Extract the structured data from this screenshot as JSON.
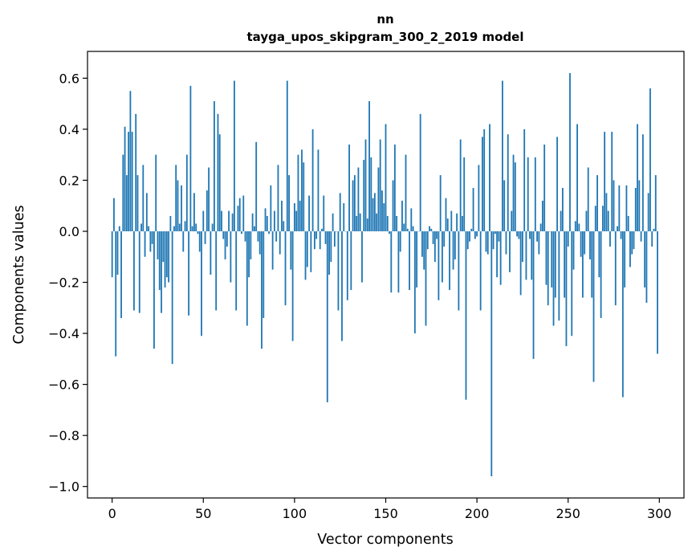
{
  "chart_data": {
    "type": "bar",
    "title_line1": "nn",
    "title_line2": "tayga_upos_skipgram_300_2_2019 model",
    "xlabel": "Vector components",
    "ylabel": "Components values",
    "xlim": [
      -13.5,
      313.5
    ],
    "ylim": [
      -1.045,
      0.705
    ],
    "xticks": [
      0,
      50,
      100,
      150,
      200,
      250,
      300
    ],
    "xtick_labels": [
      "0",
      "50",
      "100",
      "150",
      "200",
      "250",
      "300"
    ],
    "yticks": [
      -1.0,
      -0.8,
      -0.6,
      -0.4,
      -0.2,
      0.0,
      0.2,
      0.4,
      0.6
    ],
    "ytick_labels": [
      "−1.0",
      "−0.8",
      "−0.6",
      "−0.4",
      "−0.2",
      "0.0",
      "0.2",
      "0.4",
      "0.6"
    ],
    "bar_color": "#1f77b4",
    "grid": false,
    "values": [
      -0.18,
      0.13,
      -0.49,
      -0.17,
      0.02,
      -0.34,
      0.3,
      0.41,
      0.22,
      0.39,
      0.55,
      0.39,
      -0.31,
      0.46,
      0.22,
      -0.32,
      0.03,
      0.26,
      -0.1,
      0.15,
      0.02,
      -0.08,
      -0.05,
      -0.46,
      0.3,
      -0.11,
      -0.23,
      -0.32,
      -0.12,
      -0.22,
      -0.18,
      -0.2,
      0.06,
      -0.52,
      0.02,
      0.26,
      0.2,
      0.03,
      0.18,
      -0.08,
      0.04,
      0.3,
      -0.33,
      0.57,
      0.02,
      0.15,
      0.03,
      -0.01,
      -0.08,
      -0.41,
      0.08,
      -0.05,
      0.16,
      0.25,
      -0.17,
      0.03,
      0.51,
      -0.31,
      0.46,
      0.38,
      0.08,
      -0.03,
      -0.11,
      -0.06,
      0.08,
      -0.2,
      0.07,
      0.59,
      -0.31,
      0.1,
      0.13,
      -0.01,
      0.14,
      -0.04,
      -0.37,
      -0.18,
      -0.11,
      0.07,
      0.02,
      0.35,
      -0.04,
      -0.09,
      -0.46,
      -0.34,
      0.09,
      0.06,
      -0.01,
      0.18,
      -0.15,
      0.08,
      -0.04,
      0.26,
      -0.09,
      0.12,
      0.04,
      -0.29,
      0.59,
      0.22,
      -0.15,
      -0.43,
      0.11,
      0.08,
      0.3,
      0.12,
      0.32,
      0.27,
      -0.19,
      -0.14,
      0.14,
      -0.16,
      0.4,
      -0.07,
      -0.03,
      0.32,
      -0.07,
      0.01,
      0.14,
      -0.05,
      -0.67,
      -0.17,
      -0.12,
      0.07,
      -0.06,
      0.0,
      -0.31,
      0.15,
      -0.43,
      0.11,
      0.0,
      -0.27,
      0.34,
      -0.23,
      0.2,
      0.22,
      0.06,
      0.25,
      0.07,
      -0.2,
      0.28,
      0.36,
      0.05,
      0.51,
      0.29,
      0.13,
      0.15,
      0.07,
      0.25,
      0.36,
      0.16,
      0.11,
      0.42,
      0.06,
      -0.01,
      -0.24,
      0.2,
      0.34,
      0.06,
      -0.24,
      -0.08,
      0.12,
      0.03,
      0.3,
      0.01,
      -0.23,
      0.09,
      0.02,
      -0.4,
      -0.22,
      0.0,
      0.46,
      -0.1,
      -0.15,
      -0.37,
      -0.07,
      0.02,
      0.01,
      -0.05,
      -0.12,
      -0.03,
      -0.27,
      0.22,
      -0.2,
      -0.06,
      0.13,
      0.05,
      -0.23,
      0.08,
      -0.15,
      -0.11,
      0.07,
      -0.31,
      0.36,
      0.06,
      0.29,
      -0.66,
      -0.07,
      -0.04,
      0.01,
      0.17,
      -0.03,
      -0.02,
      0.26,
      -0.31,
      0.37,
      0.4,
      -0.08,
      -0.09,
      0.42,
      -0.96,
      -0.07,
      -0.01,
      -0.18,
      -0.04,
      -0.21,
      0.59,
      0.2,
      -0.09,
      0.38,
      -0.16,
      0.08,
      0.3,
      0.27,
      -0.02,
      -0.03,
      -0.25,
      -0.12,
      0.4,
      -0.19,
      0.29,
      -0.03,
      -0.19,
      -0.5,
      0.29,
      -0.04,
      -0.09,
      0.03,
      0.12,
      0.34,
      -0.21,
      -0.29,
      0.0,
      -0.22,
      -0.37,
      -0.26,
      0.37,
      -0.35,
      0.08,
      0.17,
      -0.26,
      -0.45,
      -0.06,
      0.62,
      -0.41,
      -0.15,
      0.04,
      0.42,
      0.03,
      -0.1,
      -0.26,
      -0.09,
      0.08,
      0.25,
      -0.11,
      -0.26,
      -0.59,
      0.1,
      0.22,
      -0.18,
      -0.34,
      0.1,
      0.39,
      0.15,
      0.08,
      -0.06,
      0.39,
      0.2,
      -0.29,
      0.02,
      0.18,
      -0.03,
      -0.65,
      -0.22,
      0.18,
      0.06,
      -0.14,
      -0.09,
      -0.07,
      0.17,
      0.42,
      0.2,
      -0.04,
      0.38,
      -0.22,
      -0.28,
      0.15,
      0.56,
      -0.06,
      0.01,
      0.22,
      -0.48
    ]
  }
}
